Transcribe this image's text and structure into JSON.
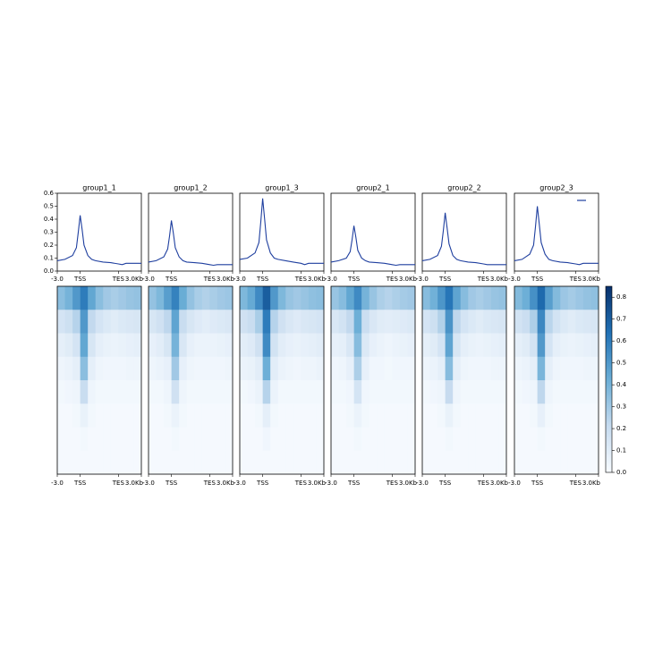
{
  "chart_data": {
    "type": "profile-heatmap",
    "xlim": [
      -3,
      8
    ],
    "xticks": [
      {
        "value": -3,
        "label": "-3.0"
      },
      {
        "value": 0,
        "label": "TSS"
      },
      {
        "value": 5,
        "label": "TES"
      },
      {
        "value": 8,
        "label": "3.0Kb"
      }
    ],
    "ylim": [
      0,
      0.6
    ],
    "yticks": [
      {
        "value": 0,
        "label": "0.0"
      },
      0.1,
      0.2,
      0.3,
      0.4,
      0.5,
      0.6
    ],
    "color": "#1f3f9f",
    "x": [
      -3,
      -2,
      -1,
      -0.5,
      -0.25,
      0,
      0.25,
      0.5,
      1,
      1.5,
      2,
      3,
      4,
      5,
      5.5,
      6,
      7,
      8
    ],
    "colormap": [
      "#f7fbff",
      "#c6dbef",
      "#6baed6",
      "#2171b5",
      "#08306b"
    ],
    "zlim": [
      0,
      0.85
    ],
    "zticks": [
      {
        "value": 0,
        "label": "0.0"
      },
      0.1,
      0.2,
      0.3,
      0.4,
      0.5,
      0.6,
      0.7,
      0.8
    ],
    "panels": [
      {
        "title": "group1_1",
        "values": [
          0.08,
          0.09,
          0.12,
          0.18,
          0.3,
          0.43,
          0.32,
          0.2,
          0.12,
          0.09,
          0.08,
          0.07,
          0.065,
          0.055,
          0.05,
          0.06,
          0.06,
          0.06
        ],
        "heatmap": [
          [
            0.35,
            0.4,
            0.5,
            0.6,
            0.45,
            0.35,
            0.3,
            0.28,
            0.3,
            0.32,
            0.33
          ],
          [
            0.15,
            0.18,
            0.25,
            0.5,
            0.22,
            0.15,
            0.12,
            0.1,
            0.12,
            0.13,
            0.14
          ],
          [
            0.08,
            0.1,
            0.15,
            0.45,
            0.14,
            0.08,
            0.06,
            0.05,
            0.06,
            0.07,
            0.08
          ],
          [
            0.04,
            0.05,
            0.08,
            0.35,
            0.08,
            0.04,
            0.03,
            0.03,
            0.03,
            0.04,
            0.04
          ],
          [
            0.02,
            0.03,
            0.04,
            0.2,
            0.04,
            0.02,
            0.02,
            0.02,
            0.02,
            0.02,
            0.02
          ],
          [
            0.01,
            0.01,
            0.02,
            0.06,
            0.02,
            0.01,
            0.01,
            0.01,
            0.01,
            0.01,
            0.01
          ],
          [
            0.01,
            0.01,
            0.01,
            0.02,
            0.01,
            0.01,
            0.01,
            0.01,
            0.01,
            0.01,
            0.01
          ],
          [
            0.01,
            0.01,
            0.01,
            0.01,
            0.01,
            0.01,
            0.01,
            0.01,
            0.01,
            0.01,
            0.01
          ]
        ]
      },
      {
        "title": "group1_2",
        "values": [
          0.07,
          0.08,
          0.11,
          0.17,
          0.27,
          0.39,
          0.29,
          0.18,
          0.11,
          0.08,
          0.07,
          0.065,
          0.06,
          0.05,
          0.045,
          0.05,
          0.05,
          0.05
        ],
        "heatmap": [
          [
            0.33,
            0.38,
            0.48,
            0.58,
            0.43,
            0.33,
            0.28,
            0.26,
            0.28,
            0.3,
            0.31
          ],
          [
            0.14,
            0.17,
            0.23,
            0.46,
            0.2,
            0.14,
            0.11,
            0.09,
            0.11,
            0.12,
            0.13
          ],
          [
            0.07,
            0.09,
            0.14,
            0.4,
            0.13,
            0.07,
            0.05,
            0.05,
            0.05,
            0.06,
            0.07
          ],
          [
            0.04,
            0.05,
            0.07,
            0.3,
            0.07,
            0.04,
            0.03,
            0.03,
            0.03,
            0.03,
            0.04
          ],
          [
            0.02,
            0.02,
            0.04,
            0.17,
            0.04,
            0.02,
            0.02,
            0.02,
            0.02,
            0.02,
            0.02
          ],
          [
            0.01,
            0.01,
            0.02,
            0.05,
            0.02,
            0.01,
            0.01,
            0.01,
            0.01,
            0.01,
            0.01
          ],
          [
            0.01,
            0.01,
            0.01,
            0.02,
            0.01,
            0.01,
            0.01,
            0.01,
            0.01,
            0.01,
            0.01
          ],
          [
            0.01,
            0.01,
            0.01,
            0.01,
            0.01,
            0.01,
            0.01,
            0.01,
            0.01,
            0.01,
            0.01
          ]
        ]
      },
      {
        "title": "group1_3",
        "values": [
          0.09,
          0.1,
          0.14,
          0.22,
          0.38,
          0.56,
          0.4,
          0.24,
          0.14,
          0.1,
          0.09,
          0.08,
          0.07,
          0.06,
          0.05,
          0.06,
          0.06,
          0.06
        ],
        "heatmap": [
          [
            0.38,
            0.44,
            0.55,
            0.7,
            0.5,
            0.38,
            0.32,
            0.3,
            0.32,
            0.34,
            0.35
          ],
          [
            0.17,
            0.2,
            0.28,
            0.6,
            0.25,
            0.17,
            0.13,
            0.11,
            0.13,
            0.14,
            0.15
          ],
          [
            0.09,
            0.11,
            0.17,
            0.55,
            0.16,
            0.09,
            0.07,
            0.06,
            0.07,
            0.08,
            0.09
          ],
          [
            0.05,
            0.06,
            0.09,
            0.42,
            0.09,
            0.05,
            0.04,
            0.03,
            0.04,
            0.04,
            0.05
          ],
          [
            0.02,
            0.03,
            0.05,
            0.25,
            0.05,
            0.02,
            0.02,
            0.02,
            0.02,
            0.02,
            0.02
          ],
          [
            0.01,
            0.01,
            0.02,
            0.08,
            0.02,
            0.01,
            0.01,
            0.01,
            0.01,
            0.01,
            0.01
          ],
          [
            0.01,
            0.01,
            0.01,
            0.03,
            0.01,
            0.01,
            0.01,
            0.01,
            0.01,
            0.01,
            0.01
          ],
          [
            0.01,
            0.01,
            0.01,
            0.01,
            0.01,
            0.01,
            0.01,
            0.01,
            0.01,
            0.01,
            0.01
          ]
        ]
      },
      {
        "title": "group2_1",
        "values": [
          0.07,
          0.08,
          0.1,
          0.15,
          0.24,
          0.35,
          0.26,
          0.16,
          0.1,
          0.08,
          0.07,
          0.065,
          0.06,
          0.05,
          0.045,
          0.05,
          0.05,
          0.05
        ],
        "heatmap": [
          [
            0.32,
            0.36,
            0.45,
            0.55,
            0.4,
            0.32,
            0.27,
            0.25,
            0.27,
            0.29,
            0.3
          ],
          [
            0.13,
            0.16,
            0.22,
            0.42,
            0.19,
            0.13,
            0.1,
            0.09,
            0.1,
            0.11,
            0.12
          ],
          [
            0.07,
            0.08,
            0.13,
            0.36,
            0.12,
            0.07,
            0.05,
            0.04,
            0.05,
            0.06,
            0.07
          ],
          [
            0.03,
            0.04,
            0.07,
            0.27,
            0.07,
            0.03,
            0.03,
            0.02,
            0.03,
            0.03,
            0.03
          ],
          [
            0.02,
            0.02,
            0.03,
            0.15,
            0.03,
            0.02,
            0.02,
            0.02,
            0.02,
            0.02,
            0.02
          ],
          [
            0.01,
            0.01,
            0.02,
            0.05,
            0.02,
            0.01,
            0.01,
            0.01,
            0.01,
            0.01,
            0.01
          ],
          [
            0.01,
            0.01,
            0.01,
            0.02,
            0.01,
            0.01,
            0.01,
            0.01,
            0.01,
            0.01,
            0.01
          ],
          [
            0.01,
            0.01,
            0.01,
            0.01,
            0.01,
            0.01,
            0.01,
            0.01,
            0.01,
            0.01,
            0.01
          ]
        ]
      },
      {
        "title": "group2_2",
        "values": [
          0.08,
          0.09,
          0.12,
          0.19,
          0.31,
          0.45,
          0.33,
          0.21,
          0.12,
          0.09,
          0.08,
          0.07,
          0.065,
          0.055,
          0.05,
          0.05,
          0.05,
          0.05
        ],
        "heatmap": [
          [
            0.36,
            0.41,
            0.51,
            0.62,
            0.46,
            0.36,
            0.3,
            0.28,
            0.3,
            0.32,
            0.33
          ],
          [
            0.15,
            0.18,
            0.26,
            0.52,
            0.23,
            0.15,
            0.12,
            0.1,
            0.12,
            0.13,
            0.14
          ],
          [
            0.08,
            0.1,
            0.15,
            0.46,
            0.14,
            0.08,
            0.06,
            0.05,
            0.06,
            0.07,
            0.08
          ],
          [
            0.04,
            0.05,
            0.08,
            0.36,
            0.08,
            0.04,
            0.03,
            0.03,
            0.03,
            0.04,
            0.04
          ],
          [
            0.02,
            0.03,
            0.04,
            0.21,
            0.04,
            0.02,
            0.02,
            0.02,
            0.02,
            0.02,
            0.02
          ],
          [
            0.01,
            0.01,
            0.02,
            0.06,
            0.02,
            0.01,
            0.01,
            0.01,
            0.01,
            0.01,
            0.01
          ],
          [
            0.01,
            0.01,
            0.01,
            0.02,
            0.01,
            0.01,
            0.01,
            0.01,
            0.01,
            0.01,
            0.01
          ],
          [
            0.01,
            0.01,
            0.01,
            0.01,
            0.01,
            0.01,
            0.01,
            0.01,
            0.01,
            0.01,
            0.01
          ]
        ]
      },
      {
        "title": "group2_3",
        "values": [
          0.08,
          0.09,
          0.13,
          0.2,
          0.34,
          0.5,
          0.36,
          0.22,
          0.13,
          0.09,
          0.08,
          0.07,
          0.065,
          0.055,
          0.05,
          0.06,
          0.06,
          0.06
        ],
        "heatmap": [
          [
            0.37,
            0.42,
            0.53,
            0.66,
            0.48,
            0.37,
            0.31,
            0.29,
            0.31,
            0.33,
            0.34
          ],
          [
            0.16,
            0.19,
            0.27,
            0.56,
            0.24,
            0.16,
            0.12,
            0.1,
            0.12,
            0.13,
            0.14
          ],
          [
            0.08,
            0.1,
            0.16,
            0.5,
            0.15,
            0.08,
            0.06,
            0.05,
            0.06,
            0.07,
            0.08
          ],
          [
            0.04,
            0.05,
            0.08,
            0.39,
            0.08,
            0.04,
            0.03,
            0.03,
            0.03,
            0.04,
            0.04
          ],
          [
            0.02,
            0.03,
            0.04,
            0.23,
            0.04,
            0.02,
            0.02,
            0.02,
            0.02,
            0.02,
            0.02
          ],
          [
            0.01,
            0.01,
            0.02,
            0.07,
            0.02,
            0.01,
            0.01,
            0.01,
            0.01,
            0.01,
            0.01
          ],
          [
            0.01,
            0.01,
            0.01,
            0.02,
            0.01,
            0.01,
            0.01,
            0.01,
            0.01,
            0.01,
            0.01
          ],
          [
            0.01,
            0.01,
            0.01,
            0.01,
            0.01,
            0.01,
            0.01,
            0.01,
            0.01,
            0.01,
            0.01
          ]
        ]
      }
    ]
  }
}
